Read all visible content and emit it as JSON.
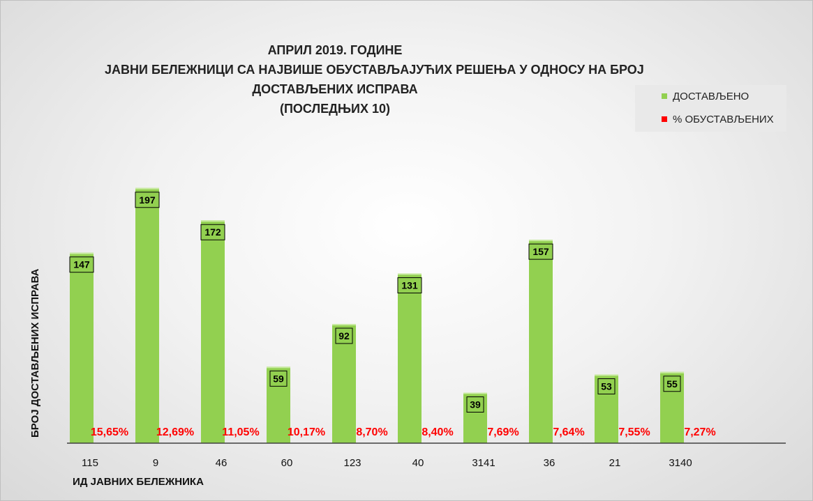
{
  "chart_data": {
    "type": "bar",
    "title_lines": [
      "АПРИЛ 2019. ГОДИНЕ",
      "ЈАВНИ БЕЛЕЖНИЦИ СА НАЈВИШЕ ОБУСТАВЉАЈУЋИХ РЕШЕЊА У ОДНОСУ НА БРОЈ",
      "ДОСТАВЉЕНИХ ИСПРАВА",
      "(ПОСЛЕДЊИХ 10)"
    ],
    "xlabel": "ИД ЈАВНИХ БЕЛЕЖНИКА",
    "ylabel": "БРОЈ ДОСТАВЉЕНИХ ИСПРАВА",
    "categories": [
      "115",
      "9",
      "46",
      "60",
      "123",
      "40",
      "3141",
      "36",
      "21",
      "3140"
    ],
    "series": [
      {
        "name": "ДОСТАВЉЕНО",
        "color": "#92d050",
        "values": [
          147,
          197,
          172,
          59,
          92,
          131,
          39,
          157,
          53,
          55
        ],
        "labels": [
          "147",
          "197",
          "172",
          "59",
          "92",
          "131",
          "39",
          "157",
          "53",
          "55"
        ]
      },
      {
        "name": "% ОБУСТАВЉЕНИХ",
        "color": "#ff0000",
        "values": [
          15.65,
          12.69,
          11.05,
          10.17,
          8.7,
          8.4,
          7.69,
          7.64,
          7.55,
          7.27
        ],
        "labels": [
          "15,65%",
          "12,69%",
          "11,05%",
          "10,17%",
          "8,70%",
          "8,40%",
          "7,69%",
          "7,64%",
          "7,55%",
          "7,27%"
        ]
      }
    ],
    "ylim": [
      0,
      227
    ],
    "grid": false,
    "legend_position": "top-right"
  }
}
